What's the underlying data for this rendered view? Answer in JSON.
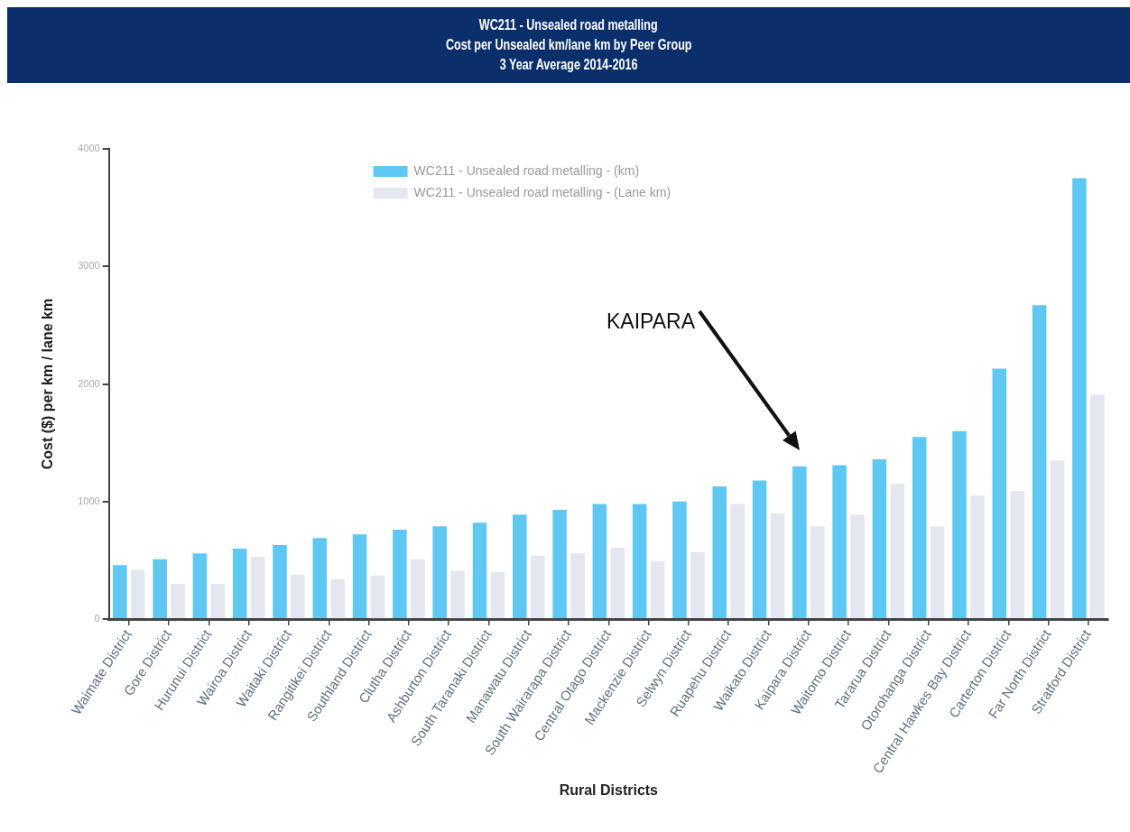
{
  "chart_data": {
    "type": "bar",
    "title": "WC211 - Unsealed road metalling",
    "subtitle": "Cost per Unsealed km/lane km by Peer Group\n3 Year Average 2014-2016",
    "xlabel": "Rural Districts",
    "ylabel": "Cost ($) per km / lane km",
    "categories": [
      "Waimate District",
      "Gore District",
      "Hurunui District",
      "Wairoa District",
      "Waitaki District",
      "Rangitikei District",
      "Southland District",
      "Clutha District",
      "Ashburton District",
      "South Taranaki District",
      "Manawatu District",
      "South Wairarapa District",
      "Central Otago District",
      "Mackenzie District",
      "Selwyn District",
      "Ruapehu District",
      "Waikato District",
      "Kaipara District",
      "Waitomo District",
      "Tararua District",
      "Otorohanga District",
      "Central Hawkes Bay District",
      "Carterton District",
      "Far North District",
      "Stratford District"
    ],
    "series": [
      {
        "name": "WC211 - Unsealed road metalling - (km)",
        "color": "#5ec8f2",
        "values": [
          460,
          510,
          560,
          600,
          630,
          690,
          720,
          760,
          790,
          820,
          890,
          930,
          980,
          980,
          1000,
          1130,
          1180,
          1300,
          1310,
          1360,
          1550,
          1600,
          2130,
          2670,
          3750
        ]
      },
      {
        "name": "WC211 - Unsealed road metalling - (Lane km)",
        "color": "#e4e6f0",
        "values": [
          420,
          300,
          300,
          530,
          380,
          340,
          370,
          510,
          410,
          400,
          540,
          560,
          610,
          490,
          570,
          980,
          900,
          790,
          890,
          1150,
          790,
          1050,
          1090,
          1350,
          1910
        ]
      }
    ],
    "ylim": [
      0,
      4000
    ],
    "yticks": [
      0,
      1000,
      2000,
      3000,
      4000
    ],
    "legend": "top",
    "annotations": [
      "KAIPARA"
    ]
  }
}
